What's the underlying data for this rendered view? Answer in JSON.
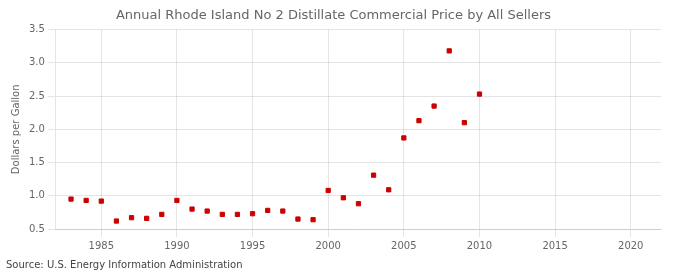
{
  "chart_data": {
    "type": "scatter",
    "title": "Annual Rhode Island No 2 Distillate Commercial Price by All Sellers",
    "ylabel": "Dollars per Gallon",
    "annotations": [
      "Source: U.S. Energy Information Administration"
    ],
    "x": [
      1983,
      1984,
      1985,
      1986,
      1987,
      1988,
      1989,
      1990,
      1991,
      1992,
      1993,
      1994,
      1995,
      1996,
      1997,
      1998,
      1999,
      2000,
      2001,
      2002,
      2003,
      2004,
      2005,
      2006,
      2007,
      2008,
      2009,
      2010
    ],
    "values": [
      0.95,
      0.93,
      0.92,
      0.62,
      0.67,
      0.66,
      0.72,
      0.93,
      0.8,
      0.77,
      0.72,
      0.72,
      0.73,
      0.78,
      0.77,
      0.65,
      0.64,
      1.08,
      0.97,
      0.88,
      1.31,
      1.09,
      1.87,
      2.13,
      2.35,
      3.18,
      2.1,
      2.53
    ],
    "color": "#cc0000",
    "marker": "square",
    "xlim": [
      1982,
      2022
    ],
    "xticks": [
      1985,
      1990,
      1995,
      2000,
      2005,
      2010,
      2015,
      2020
    ],
    "ylim": [
      0.5,
      3.5
    ],
    "yticks": [
      0.5,
      {
        "value": 1.0,
        "label": "1.0"
      },
      1.5,
      {
        "value": 2.0,
        "label": "2.0"
      },
      2.5,
      {
        "value": 3.0,
        "label": "3.0"
      },
      3.5
    ],
    "grid": true
  }
}
